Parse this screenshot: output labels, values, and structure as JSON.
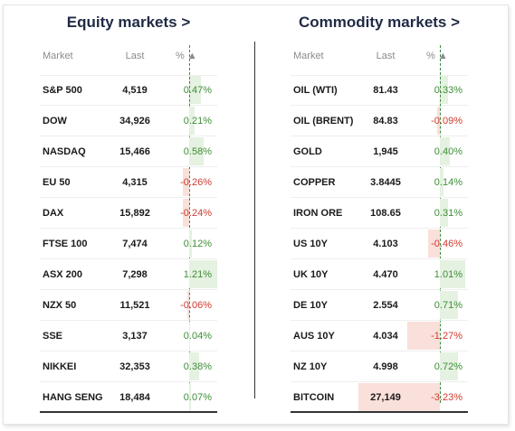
{
  "colors": {
    "positive": "#3d8f35",
    "negative": "#d03a2e",
    "title": "#1f2a44"
  },
  "equity": {
    "title": "Equity markets >",
    "headers": {
      "market": "Market",
      "last": "Last",
      "pct": "% ▲"
    },
    "rows": [
      {
        "market": "S&P 500",
        "last": "4,519",
        "pct": "0.47%",
        "value": 0.47
      },
      {
        "market": "DOW",
        "last": "34,926",
        "pct": "0.21%",
        "value": 0.21
      },
      {
        "market": "NASDAQ",
        "last": "15,466",
        "pct": "0.58%",
        "value": 0.58
      },
      {
        "market": "EU 50",
        "last": "4,315",
        "pct": "-0.26%",
        "value": -0.26
      },
      {
        "market": "DAX",
        "last": "15,892",
        "pct": "-0.24%",
        "value": -0.24
      },
      {
        "market": "FTSE 100",
        "last": "7,474",
        "pct": "0.12%",
        "value": 0.12
      },
      {
        "market": "ASX 200",
        "last": "7,298",
        "pct": "1.21%",
        "value": 1.21
      },
      {
        "market": "NZX 50",
        "last": "11,521",
        "pct": "-0.06%",
        "value": -0.06
      },
      {
        "market": "SSE",
        "last": "3,137",
        "pct": "0.04%",
        "value": 0.04
      },
      {
        "market": "NIKKEI",
        "last": "32,353",
        "pct": "0.38%",
        "value": 0.38
      },
      {
        "market": "HANG SENG",
        "last": "18,484",
        "pct": "0.07%",
        "value": 0.07
      }
    ]
  },
  "commodity": {
    "title": "Commodity markets >",
    "headers": {
      "market": "Market",
      "last": "Last",
      "pct": "% ▲"
    },
    "rows": [
      {
        "market": "OIL (WTI)",
        "last": "81.43",
        "pct": "0.33%",
        "value": 0.33
      },
      {
        "market": "OIL (BRENT)",
        "last": "84.83",
        "pct": "-0.09%",
        "value": -0.09
      },
      {
        "market": "GOLD",
        "last": "1,945",
        "pct": "0.40%",
        "value": 0.4
      },
      {
        "market": "COPPER",
        "last": "3.8445",
        "pct": "0.14%",
        "value": 0.14
      },
      {
        "market": "IRON ORE",
        "last": "108.65",
        "pct": "0.31%",
        "value": 0.31
      },
      {
        "market": "US 10Y",
        "last": "4.103",
        "pct": "-0.46%",
        "value": -0.46
      },
      {
        "market": "UK 10Y",
        "last": "4.470",
        "pct": "1.01%",
        "value": 1.01
      },
      {
        "market": "DE 10Y",
        "last": "2.554",
        "pct": "0.71%",
        "value": 0.71
      },
      {
        "market": "AUS 10Y",
        "last": "4.034",
        "pct": "-1.27%",
        "value": -1.27
      },
      {
        "market": "NZ 10Y",
        "last": "4.998",
        "pct": "0.72%",
        "value": 0.72
      },
      {
        "market": "BITCOIN",
        "last": "27,149",
        "pct": "-3.23%",
        "value": -3.23
      }
    ]
  }
}
